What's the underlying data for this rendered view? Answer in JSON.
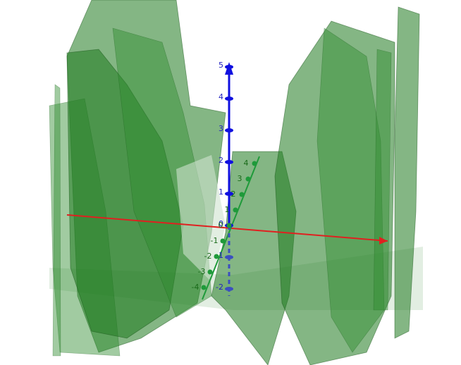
{
  "view": {
    "z_axis": {
      "ticks": [
        5,
        4,
        3,
        2,
        1,
        0,
        -1,
        -2
      ]
    },
    "y_axis": {
      "ticks": [
        4,
        3,
        2,
        1,
        0,
        -1,
        -2,
        -3,
        -4
      ]
    }
  }
}
